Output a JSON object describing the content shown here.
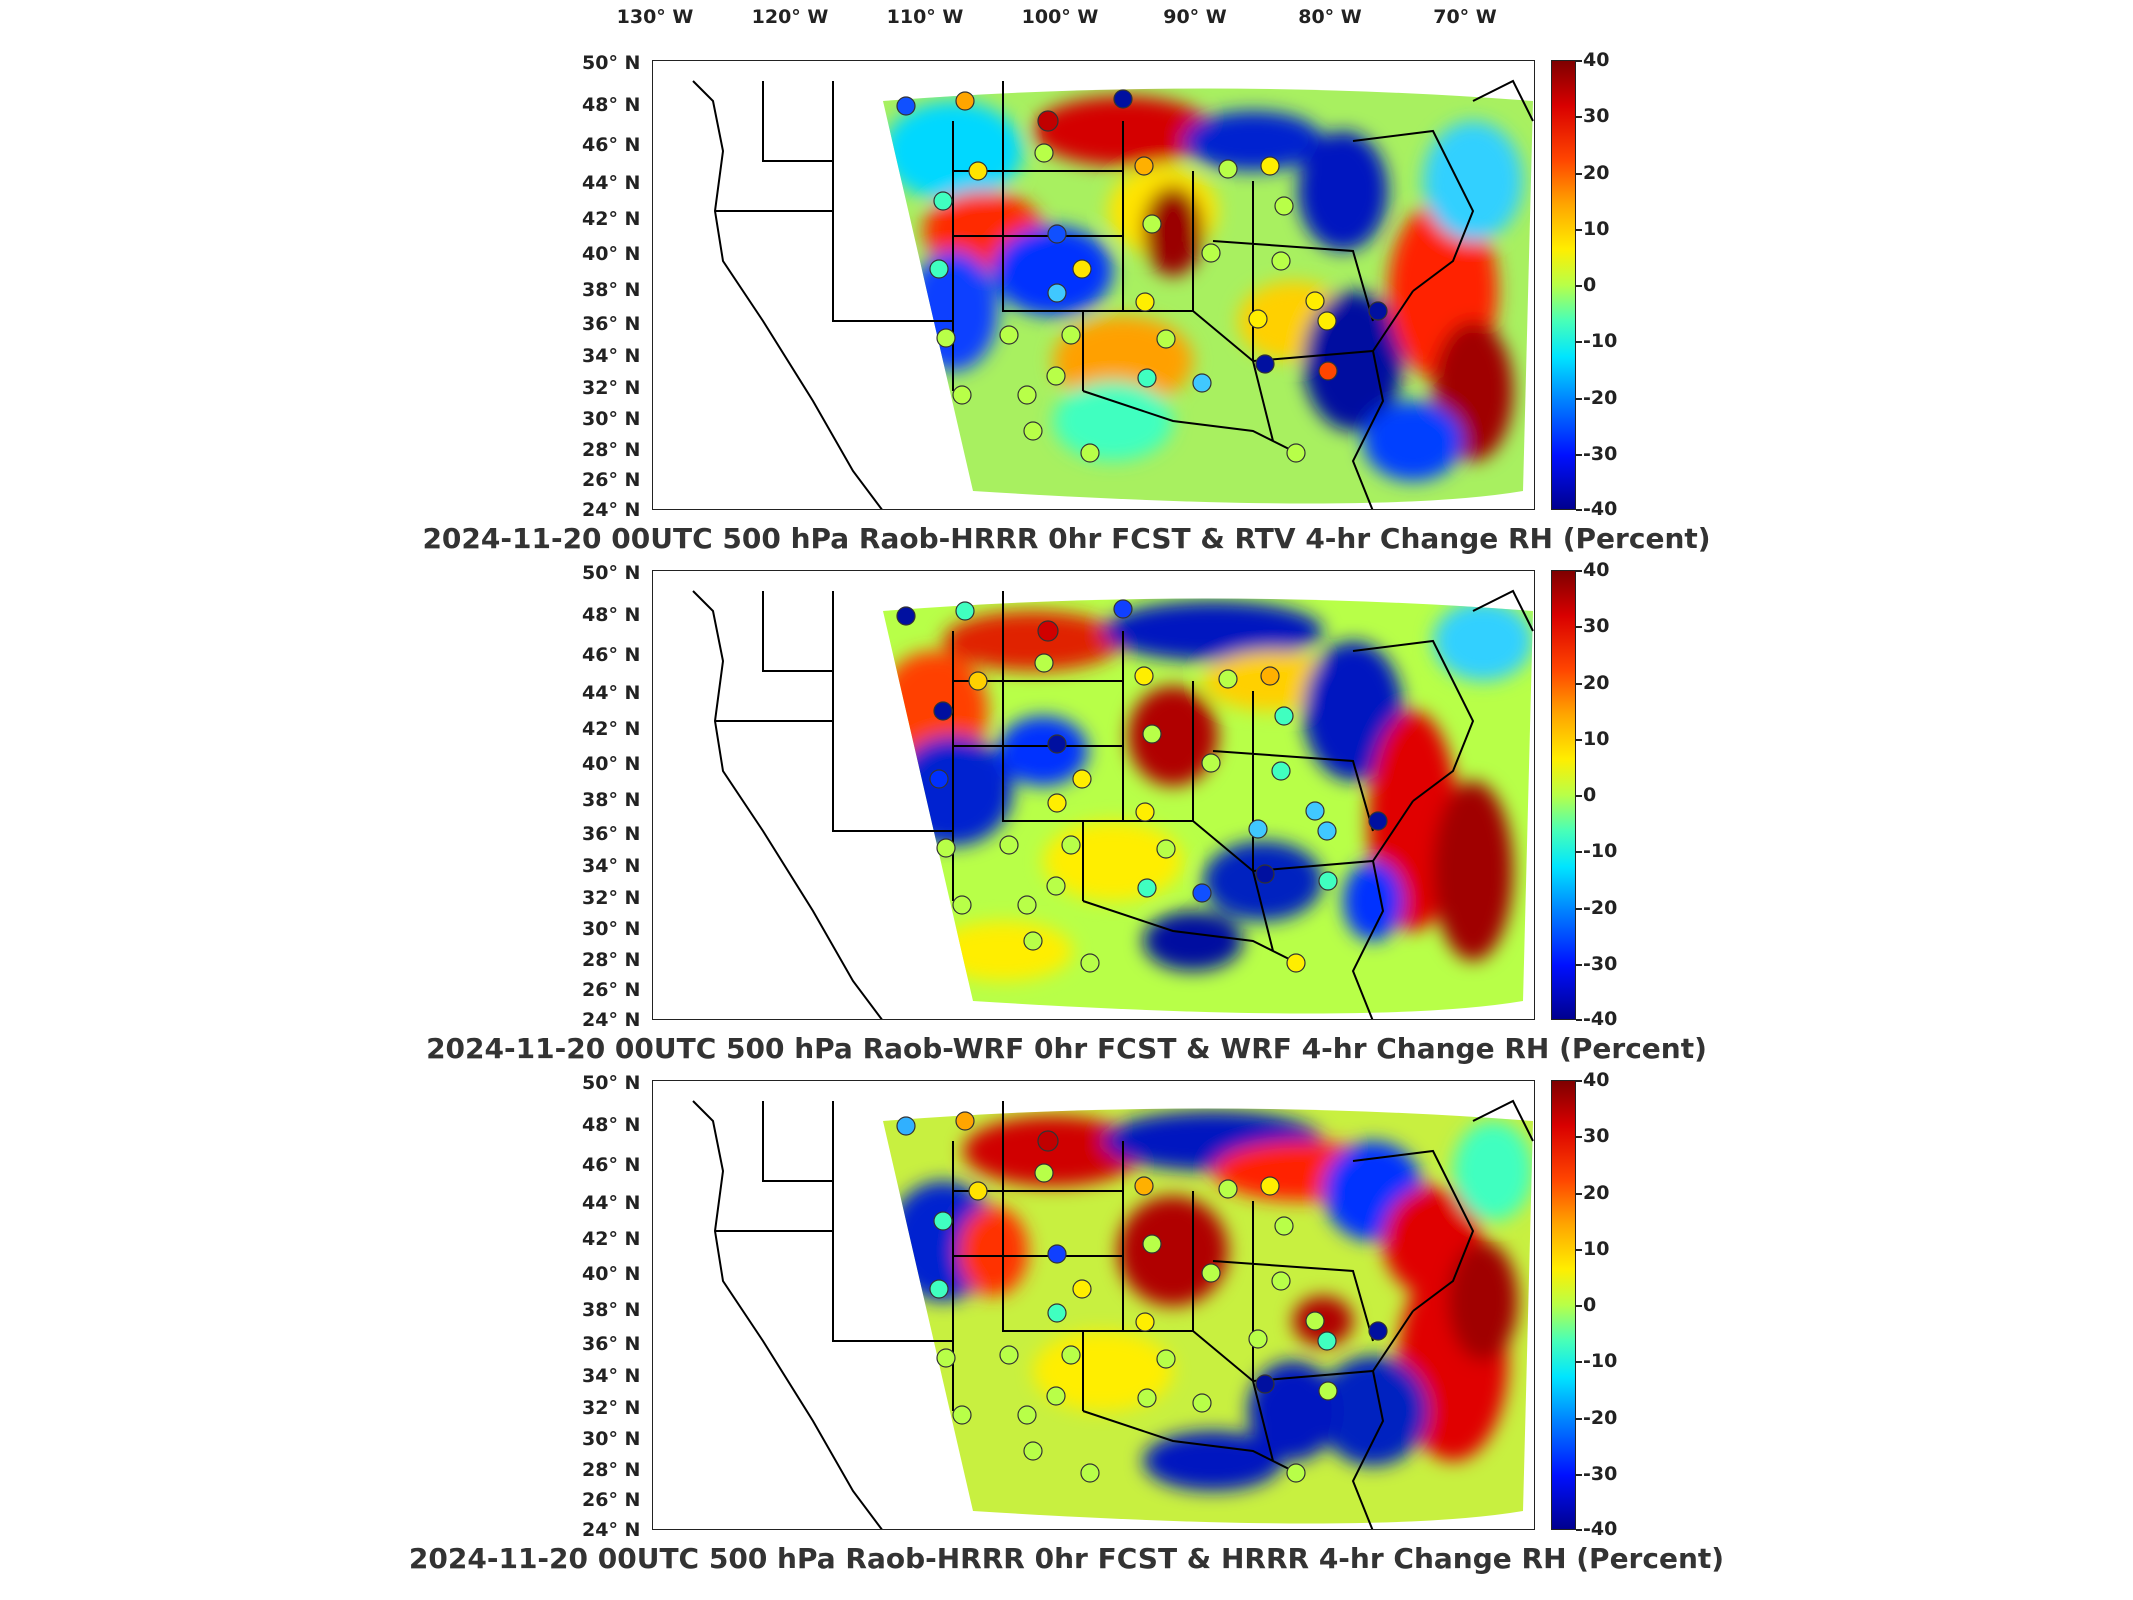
{
  "longitude_labels": [
    "130° W",
    "120° W",
    "110° W",
    "100° W",
    "90° W",
    "80° W",
    "70° W"
  ],
  "latitude_labels": [
    "50° N",
    "48° N",
    "46° N",
    "44° N",
    "42° N",
    "40° N",
    "38° N",
    "36° N",
    "34° N",
    "32° N",
    "30° N",
    "28° N",
    "26° N",
    "24° N"
  ],
  "colorbar": {
    "units": "Percent",
    "ticks": [
      "40",
      "30",
      "20",
      "10",
      "0",
      "-10",
      "-20",
      "-30",
      "-40"
    ],
    "colors": {
      "max": "#7f0000",
      "high": "#ff0000",
      "mid_high": "#ffa500",
      "zero": "#b8ff48",
      "mid_low": "#00e5ff",
      "low": "#0010ff",
      "min": "#00008f"
    }
  },
  "panels": [
    {
      "title": "2024-11-20 00UTC 500 hPa Raob-HRRR 0hr FCST & RTV 4-hr Change RH (Percent)"
    },
    {
      "title": "2024-11-20 00UTC 500 hPa Raob-WRF 0hr FCST & WRF 4-hr Change RH (Percent)"
    },
    {
      "title": "2024-11-20 00UTC 500 hPa Raob-HRRR 0hr FCST & HRRR 4-hr Change RH (Percent)"
    }
  ]
}
